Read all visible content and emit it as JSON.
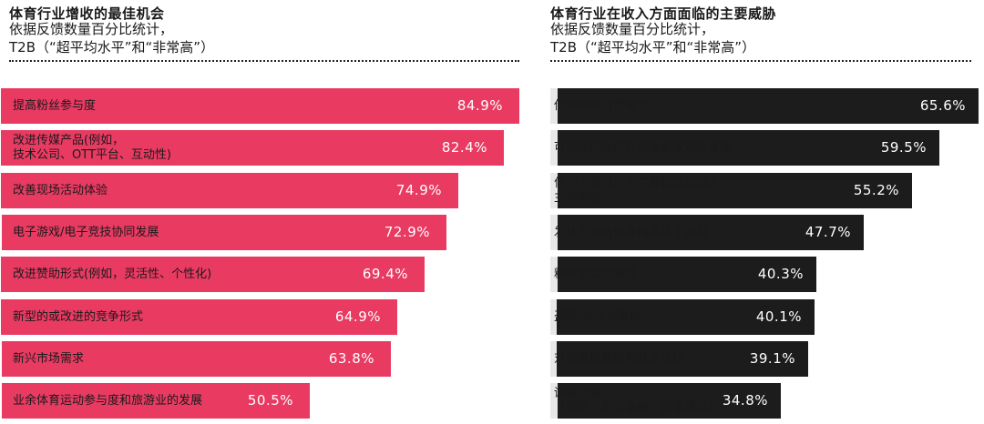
{
  "colors": {
    "left_bar": "#e93a62",
    "right_bar": "#1c1c1c",
    "row_background": "#e8e8e8"
  },
  "chart_data": [
    {
      "type": "bar",
      "orientation": "horizontal",
      "title": "体育行业增收的最佳机会",
      "subtitle_line1": "依据反馈数量百分比统计，",
      "subtitle_line2": "T2B（“超平均水平”和“非常高”）",
      "xlim": [
        0,
        100
      ],
      "unit": "%",
      "items": [
        {
          "label": [
            "提高粉丝参与度"
          ],
          "value": 84.9,
          "value_text": "84.9%"
        },
        {
          "label": [
            "改进传媒产品(例如，",
            "技术公司、OTT平台、互动性)"
          ],
          "value": 82.4,
          "value_text": "82.4%"
        },
        {
          "label": [
            "改善现场活动体验"
          ],
          "value": 74.9,
          "value_text": "74.9%"
        },
        {
          "label": [
            "电子游戏/电子竞技协同发展"
          ],
          "value": 72.9,
          "value_text": "72.9%"
        },
        {
          "label": [
            "改进赞助形式(例如，灵活性、个性化)"
          ],
          "value": 69.4,
          "value_text": "69.4%"
        },
        {
          "label": [
            "新型的或改进的竞争形式"
          ],
          "value": 64.9,
          "value_text": "64.9%"
        },
        {
          "label": [
            "新兴市场需求"
          ],
          "value": 63.8,
          "value_text": "63.8%"
        },
        {
          "label": [
            "业余体育运动参与度和旅游业的发展"
          ],
          "value": 50.5,
          "value_text": "50.5%"
        }
      ]
    },
    {
      "type": "bar",
      "orientation": "horizontal",
      "title": "体育行业在收入方面面临的主要威胁",
      "subtitle_line1": "依据反馈数量百分比统计，",
      "subtitle_line2": "T2B（“超平均水平”和“非常高”）",
      "xlim": [
        0,
        100
      ],
      "unit": "%",
      "items": [
        {
          "label": [
            "传统电视消费减少"
          ],
          "value": 65.6,
          "value_text": "65.6%"
        },
        {
          "label": [
            "可选择的娱乐方式及受欢迎度增加"
          ],
          "value": 59.5,
          "value_text": "59.5%"
        },
        {
          "label": [
            "作为内容门户的主要科技公司占",
            "主导地位"
          ],
          "value": 55.2,
          "value_text": "55.2%"
        },
        {
          "label": [
            "发达市场的体育内容趋于饱和"
          ],
          "value": 47.7,
          "value_text": "47.7%"
        },
        {
          "label": [
            "粉丝忠实度降低"
          ],
          "value": 40.3,
          "value_text": "40.3%"
        },
        {
          "label": [
            "盗版/非法流媒体"
          ],
          "value": 40.1,
          "value_text": "40.1%"
        },
        {
          "label": [
            "对体育监管机构缺乏信任"
          ],
          "value": 39.1,
          "value_text": "39.1%"
        },
        {
          "label": [
            "诚信问题",
            "（例如，反兴奋剂、赛事操纵）"
          ],
          "value": 34.8,
          "value_text": "34.8%"
        }
      ]
    }
  ]
}
